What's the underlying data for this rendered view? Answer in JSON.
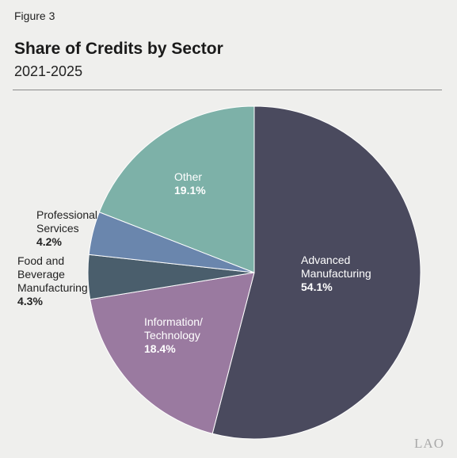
{
  "figure_label": "Figure 3",
  "logo_text": "LAO",
  "chart_data": {
    "type": "pie",
    "title": "Share of Credits by Sector",
    "subtitle": "2021-2025",
    "slices": [
      {
        "label_lines": [
          "Advanced",
          "Manufacturing"
        ],
        "percent_label": "54.1%",
        "value": 54.1,
        "color": "#4a4a5e",
        "label_color": "#ffffff"
      },
      {
        "label_lines": [
          "Information/",
          "Technology"
        ],
        "percent_label": "18.4%",
        "value": 18.4,
        "color": "#9a7aa0",
        "label_color": "#ffffff"
      },
      {
        "label_lines": [
          "Food and",
          "Beverage",
          "Manufacturing"
        ],
        "percent_label": "4.3%",
        "value": 4.3,
        "color": "#4a5e6c",
        "label_color": "#222222"
      },
      {
        "label_lines": [
          "Professional",
          "Services"
        ],
        "percent_label": "4.2%",
        "value": 4.2,
        "color": "#6a86ad",
        "label_color": "#222222"
      },
      {
        "label_lines": [
          "Other"
        ],
        "percent_label": "19.1%",
        "value": 19.1,
        "color": "#7db1a8",
        "label_color": "#ffffff"
      }
    ]
  }
}
